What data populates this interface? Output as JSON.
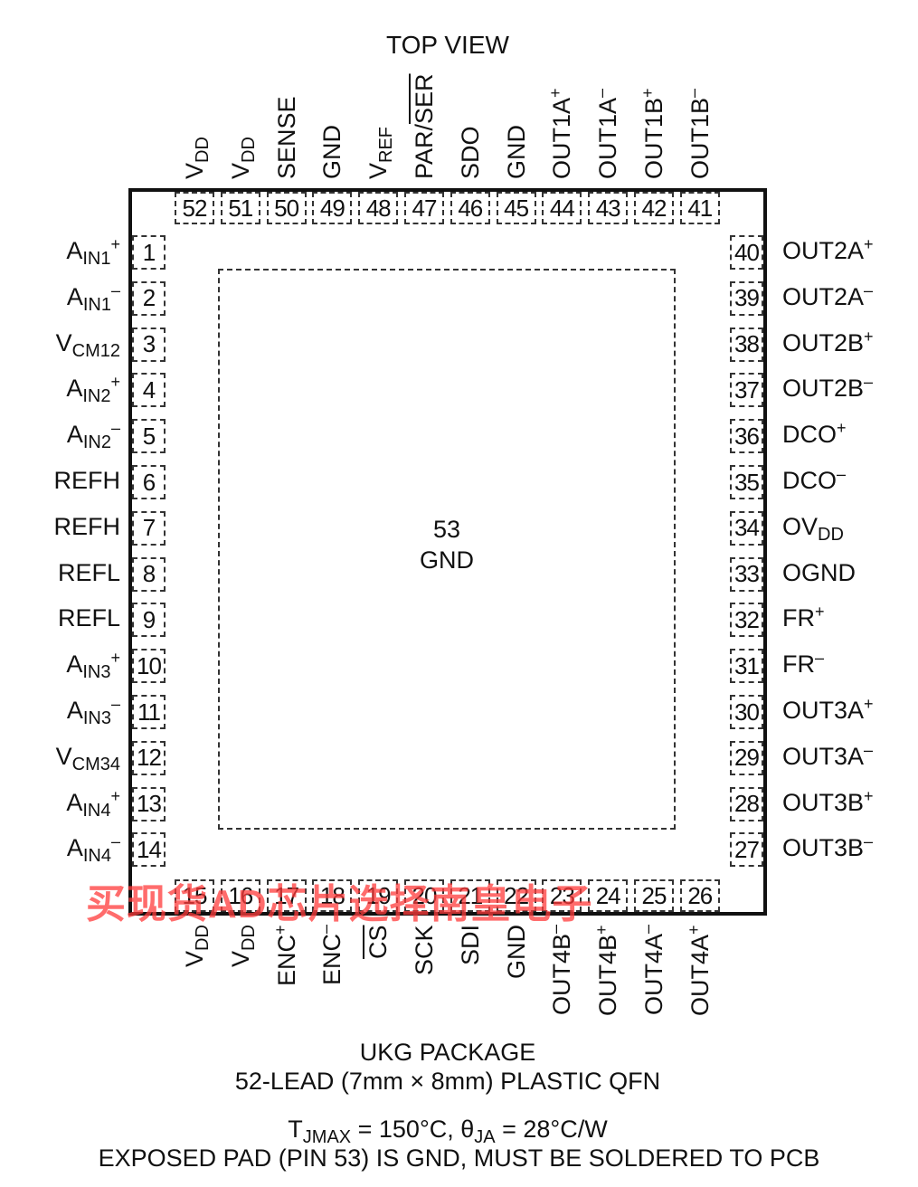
{
  "title": "TOP VIEW",
  "exposed_pad": {
    "number": "53",
    "label": "GND"
  },
  "pins_left": [
    {
      "num": "1",
      "name": "A",
      "sub": "IN1",
      "sup": "+"
    },
    {
      "num": "2",
      "name": "A",
      "sub": "IN1",
      "sup": "–"
    },
    {
      "num": "3",
      "name": "V",
      "sub": "CM12",
      "sup": ""
    },
    {
      "num": "4",
      "name": "A",
      "sub": "IN2",
      "sup": "+"
    },
    {
      "num": "5",
      "name": "A",
      "sub": "IN2",
      "sup": "–"
    },
    {
      "num": "6",
      "name": "REFH",
      "sub": "",
      "sup": ""
    },
    {
      "num": "7",
      "name": "REFH",
      "sub": "",
      "sup": ""
    },
    {
      "num": "8",
      "name": "REFL",
      "sub": "",
      "sup": ""
    },
    {
      "num": "9",
      "name": "REFL",
      "sub": "",
      "sup": ""
    },
    {
      "num": "10",
      "name": "A",
      "sub": "IN3",
      "sup": "+"
    },
    {
      "num": "11",
      "name": "A",
      "sub": "IN3",
      "sup": "–"
    },
    {
      "num": "12",
      "name": "V",
      "sub": "CM34",
      "sup": ""
    },
    {
      "num": "13",
      "name": "A",
      "sub": "IN4",
      "sup": "+"
    },
    {
      "num": "14",
      "name": "A",
      "sub": "IN4",
      "sup": "–"
    }
  ],
  "pins_right": [
    {
      "num": "40",
      "name": "OUT2A",
      "sub": "",
      "sup": "+"
    },
    {
      "num": "39",
      "name": "OUT2A",
      "sub": "",
      "sup": "–"
    },
    {
      "num": "38",
      "name": "OUT2B",
      "sub": "",
      "sup": "+"
    },
    {
      "num": "37",
      "name": "OUT2B",
      "sub": "",
      "sup": "–"
    },
    {
      "num": "36",
      "name": "DCO",
      "sub": "",
      "sup": "+"
    },
    {
      "num": "35",
      "name": "DCO",
      "sub": "",
      "sup": "–"
    },
    {
      "num": "34",
      "name": "OV",
      "sub": "DD",
      "sup": ""
    },
    {
      "num": "33",
      "name": "OGND",
      "sub": "",
      "sup": ""
    },
    {
      "num": "32",
      "name": "FR",
      "sub": "",
      "sup": "+"
    },
    {
      "num": "31",
      "name": "FR",
      "sub": "",
      "sup": "–"
    },
    {
      "num": "30",
      "name": "OUT3A",
      "sub": "",
      "sup": "+"
    },
    {
      "num": "29",
      "name": "OUT3A",
      "sub": "",
      "sup": "–"
    },
    {
      "num": "28",
      "name": "OUT3B",
      "sub": "",
      "sup": "+"
    },
    {
      "num": "27",
      "name": "OUT3B",
      "sub": "",
      "sup": "–"
    }
  ],
  "pins_top": [
    {
      "num": "52",
      "name": "V",
      "sub": "DD",
      "sup": ""
    },
    {
      "num": "51",
      "name": "V",
      "sub": "DD",
      "sup": ""
    },
    {
      "num": "50",
      "name": "SENSE",
      "sub": "",
      "sup": ""
    },
    {
      "num": "49",
      "name": "GND",
      "sub": "",
      "sup": ""
    },
    {
      "num": "48",
      "name": "V",
      "sub": "REF",
      "sup": ""
    },
    {
      "num": "47",
      "name": "PAR/",
      "over": "SER",
      "sub": "",
      "sup": ""
    },
    {
      "num": "46",
      "name": "SDO",
      "sub": "",
      "sup": ""
    },
    {
      "num": "45",
      "name": "GND",
      "sub": "",
      "sup": ""
    },
    {
      "num": "44",
      "name": "OUT1A",
      "sub": "",
      "sup": "+"
    },
    {
      "num": "43",
      "name": "OUT1A",
      "sub": "",
      "sup": "–"
    },
    {
      "num": "42",
      "name": "OUT1B",
      "sub": "",
      "sup": "+"
    },
    {
      "num": "41",
      "name": "OUT1B",
      "sub": "",
      "sup": "–"
    }
  ],
  "pins_bottom": [
    {
      "num": "15",
      "name": "V",
      "sub": "DD",
      "sup": ""
    },
    {
      "num": "16",
      "name": "V",
      "sub": "DD",
      "sup": ""
    },
    {
      "num": "17",
      "name": "ENC",
      "sub": "",
      "sup": "+"
    },
    {
      "num": "18",
      "name": "ENC",
      "sub": "",
      "sup": "–"
    },
    {
      "num": "19",
      "name": "",
      "over": "CS",
      "sub": "",
      "sup": ""
    },
    {
      "num": "20",
      "name": "SCK",
      "sub": "",
      "sup": ""
    },
    {
      "num": "21",
      "name": "SDI",
      "sub": "",
      "sup": ""
    },
    {
      "num": "22",
      "name": "GND",
      "sub": "",
      "sup": ""
    },
    {
      "num": "23",
      "name": "OUT4B",
      "sub": "",
      "sup": "–"
    },
    {
      "num": "24",
      "name": "OUT4B",
      "sub": "",
      "sup": "+"
    },
    {
      "num": "25",
      "name": "OUT4A",
      "sub": "",
      "sup": "–"
    },
    {
      "num": "26",
      "name": "OUT4A",
      "sub": "",
      "sup": "+"
    }
  ],
  "footer": {
    "line1": "UKG PACKAGE",
    "line2": "52-LEAD (7mm × 8mm) PLASTIC QFN",
    "line3_parts": {
      "t": "T",
      "t_sub": "JMAX",
      "mid": " = 150°C, θ",
      "th_sub": "JA",
      "end": " = 28°C/W"
    },
    "line4": "EXPOSED PAD (PIN 53) IS GND, MUST BE SOLDERED TO PCB"
  },
  "watermark": "买现货AD芯片选择南皇电子"
}
